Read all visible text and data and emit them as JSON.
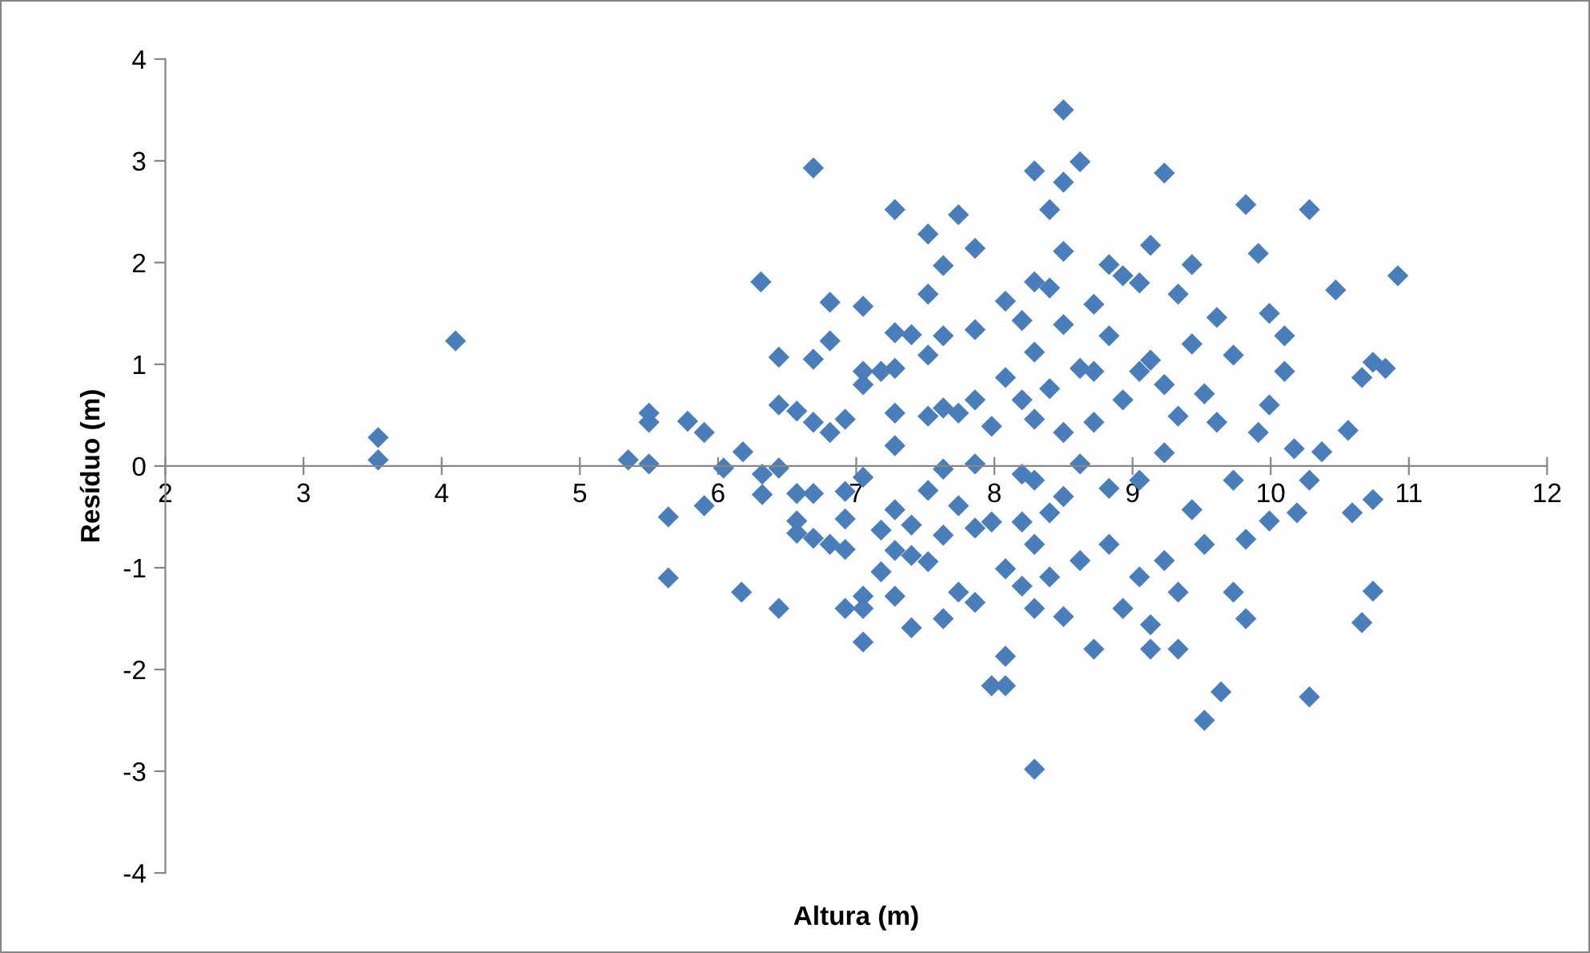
{
  "chart_data": {
    "type": "scatter",
    "xlabel": "Altura (m)",
    "ylabel": "Resíduo (m)",
    "xlim": [
      2,
      12
    ],
    "ylim": [
      -4,
      4
    ],
    "xticks": [
      2,
      3,
      4,
      5,
      6,
      7,
      8,
      9,
      10,
      11,
      12
    ],
    "yticks": [
      -4,
      -3,
      -2,
      -1,
      0,
      1,
      2,
      3,
      4
    ],
    "grid": false,
    "marker": "diamond",
    "series": [
      {
        "color": "#4a7ebb",
        "x": [
          3.54,
          3.54,
          4.1,
          5.35,
          5.5,
          5.5,
          5.5,
          5.64,
          5.64,
          5.78,
          5.9,
          5.9,
          6.04,
          6.18,
          6.17,
          6.31,
          6.32,
          6.32,
          6.44,
          6.44,
          6.44,
          6.44,
          6.57,
          6.57,
          6.57,
          6.57,
          6.69,
          6.69,
          6.69,
          6.69,
          6.69,
          6.81,
          6.81,
          6.81,
          6.81,
          6.92,
          6.92,
          6.92,
          6.92,
          6.92,
          7.05,
          7.05,
          7.05,
          7.05,
          7.05,
          7.05,
          7.05,
          7.18,
          7.18,
          7.18,
          7.28,
          7.28,
          7.28,
          7.28,
          7.28,
          7.28,
          7.28,
          7.28,
          7.4,
          7.4,
          7.4,
          7.4,
          7.52,
          7.52,
          7.52,
          7.52,
          7.52,
          7.52,
          7.63,
          7.63,
          7.63,
          7.63,
          7.63,
          7.63,
          7.74,
          7.74,
          7.74,
          7.74,
          7.86,
          7.86,
          7.86,
          7.86,
          7.86,
          7.86,
          7.98,
          7.98,
          7.98,
          8.08,
          8.08,
          8.08,
          8.08,
          8.08,
          8.2,
          8.2,
          8.2,
          8.2,
          8.2,
          8.29,
          8.29,
          8.29,
          8.29,
          8.29,
          8.29,
          8.29,
          8.29,
          8.4,
          8.4,
          8.4,
          8.4,
          8.4,
          8.5,
          8.5,
          8.5,
          8.5,
          8.5,
          8.5,
          8.5,
          8.62,
          8.62,
          8.62,
          8.62,
          8.72,
          8.72,
          8.72,
          8.72,
          8.83,
          8.83,
          8.83,
          8.83,
          8.93,
          8.93,
          8.93,
          9.05,
          9.05,
          9.05,
          9.05,
          9.13,
          9.13,
          9.13,
          9.13,
          9.23,
          9.23,
          9.23,
          9.23,
          9.33,
          9.33,
          9.33,
          9.33,
          9.43,
          9.43,
          9.43,
          9.52,
          9.52,
          9.52,
          9.61,
          9.61,
          9.64,
          9.73,
          9.73,
          9.73,
          9.82,
          9.82,
          9.82,
          9.91,
          9.91,
          9.99,
          9.99,
          9.99,
          10.1,
          10.1,
          10.17,
          10.19,
          10.28,
          10.28,
          10.28,
          10.37,
          10.47,
          10.56,
          10.59,
          10.66,
          10.66,
          10.74,
          10.74,
          10.74,
          10.83,
          10.92
        ],
        "values": [
          0.28,
          0.06,
          1.23,
          0.06,
          0.52,
          0.43,
          0.02,
          -0.5,
          -1.1,
          0.44,
          0.33,
          -0.39,
          -0.02,
          0.14,
          -1.24,
          1.81,
          -0.08,
          -0.28,
          1.07,
          0.6,
          -0.02,
          -1.4,
          0.54,
          -0.27,
          -0.54,
          -0.66,
          2.93,
          1.05,
          0.43,
          -0.27,
          -0.71,
          1.61,
          1.23,
          0.33,
          -0.77,
          0.46,
          -0.25,
          -0.52,
          -0.82,
          -1.4,
          1.57,
          0.93,
          0.8,
          -0.11,
          -1.28,
          -1.4,
          -1.73,
          0.93,
          -0.63,
          -1.04,
          2.52,
          1.31,
          0.96,
          0.52,
          0.2,
          -0.43,
          -0.83,
          -1.28,
          1.29,
          -1.59,
          -0.58,
          -0.88,
          2.28,
          1.69,
          1.09,
          0.49,
          -0.24,
          -0.94,
          1.97,
          1.28,
          0.57,
          -0.03,
          -0.68,
          -1.5,
          2.47,
          0.52,
          -0.39,
          -1.24,
          2.14,
          1.34,
          0.65,
          0.02,
          -0.61,
          -1.34,
          0.39,
          -0.55,
          -2.16,
          1.62,
          0.87,
          -1.01,
          -1.87,
          -2.16,
          1.43,
          0.65,
          -0.08,
          -0.55,
          -1.18,
          2.9,
          1.81,
          1.12,
          0.46,
          -0.14,
          -0.77,
          -1.4,
          -2.98,
          2.52,
          1.75,
          0.76,
          -0.46,
          -1.09,
          3.5,
          2.79,
          2.11,
          1.39,
          0.33,
          -0.3,
          -1.48,
          2.99,
          0.96,
          0.02,
          -0.93,
          1.59,
          0.93,
          0.43,
          -1.8,
          1.98,
          1.28,
          -0.22,
          -0.77,
          1.87,
          0.65,
          -1.4,
          1.8,
          0.93,
          -0.14,
          -1.09,
          2.17,
          1.04,
          -1.8,
          -1.56,
          2.88,
          0.8,
          0.13,
          -0.93,
          1.69,
          0.49,
          -1.24,
          -1.8,
          1.98,
          1.2,
          -0.43,
          0.71,
          -2.5,
          -0.77,
          1.46,
          0.43,
          -2.22,
          1.09,
          -0.14,
          -1.24,
          2.57,
          -1.5,
          -0.72,
          2.09,
          0.33,
          1.5,
          0.6,
          -0.54,
          1.28,
          0.93,
          0.17,
          -0.46,
          2.52,
          -2.27,
          -0.14,
          0.14,
          1.73,
          0.35,
          -0.46,
          0.87,
          -1.54,
          1.02,
          -0.33,
          -1.23,
          0.96,
          1.87
        ]
      }
    ]
  }
}
